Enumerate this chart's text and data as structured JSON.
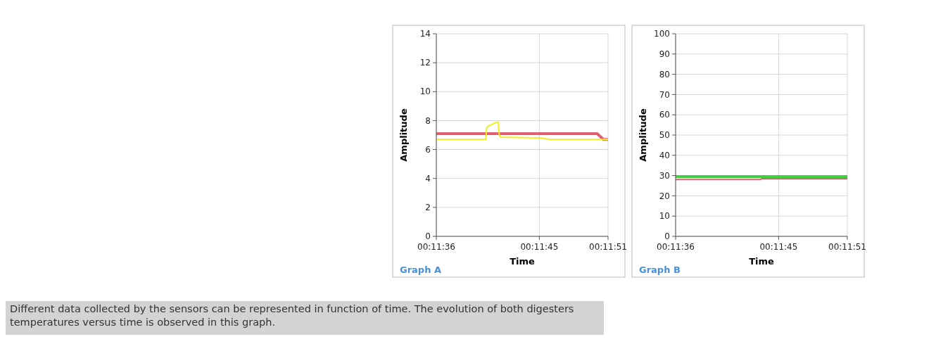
{
  "chart_data": [
    {
      "type": "line",
      "title": "Graph A",
      "xlabel": "Time",
      "ylabel": "Amplitude",
      "grid": true,
      "xlim": [
        0.193333,
        0.1975
      ],
      "ylim": [
        0,
        14
      ],
      "yticks": [
        0,
        2,
        4,
        6,
        8,
        10,
        12,
        14
      ],
      "xticks": [
        {
          "value": 0.193333,
          "label": "00:11:36"
        },
        {
          "value": 0.195833,
          "label": "00:11:45"
        },
        {
          "value": 0.1975,
          "label": "00:11:51"
        }
      ],
      "annotations": [
        "Different data collected by the sensors can be represented in function of time. The evolution of both digesters temperatures versus time is observed in this graph."
      ],
      "series": [
        {
          "color": "#e06070",
          "x": [
            0.193333,
            0.197236,
            0.197389,
            0.1975
          ],
          "values": [
            7.1,
            7.1,
            6.7,
            6.7
          ]
        },
        {
          "color": "#f0f020",
          "x": [
            0.193333,
            0.194533,
            0.194556,
            0.194583,
            0.194722,
            0.194806,
            0.194833,
            0.194861,
            0.194889,
            0.195833,
            0.196111,
            0.1975
          ],
          "values": [
            6.7,
            6.7,
            7.5,
            7.6,
            7.8,
            7.9,
            7.9,
            7.0,
            6.85,
            6.8,
            6.7,
            6.7
          ]
        }
      ]
    },
    {
      "type": "line",
      "title": "Graph B",
      "xlabel": "Time",
      "ylabel": "Amplitude",
      "grid": true,
      "xlim": [
        0.193333,
        0.1975
      ],
      "ylim": [
        0,
        100
      ],
      "yticks": [
        0,
        10,
        20,
        30,
        40,
        50,
        60,
        70,
        80,
        90,
        100
      ],
      "xticks": [
        {
          "value": 0.193333,
          "label": "00:11:36"
        },
        {
          "value": 0.195833,
          "label": "00:11:45"
        },
        {
          "value": 0.1975,
          "label": "00:11:51"
        }
      ],
      "series": [
        {
          "color": "#40d040",
          "x": [
            0.193333,
            0.1975
          ],
          "values": [
            29.5,
            29.5
          ]
        },
        {
          "color": "#e06070",
          "x": [
            0.193333,
            0.195389,
            0.195417,
            0.1975
          ],
          "values": [
            28,
            28,
            28.5,
            28.5
          ]
        }
      ]
    }
  ]
}
